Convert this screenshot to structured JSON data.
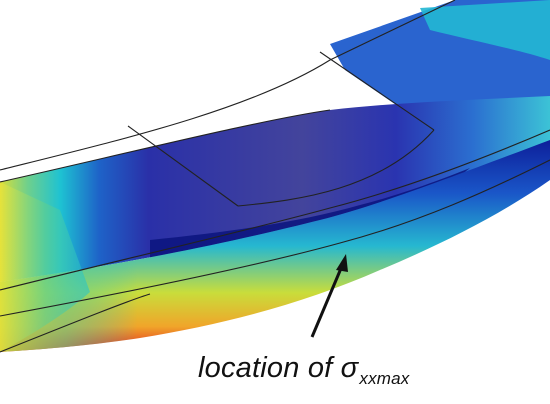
{
  "annotation": {
    "text": "location of",
    "symbol": "σ",
    "subscript": "xxmax"
  },
  "colors": {
    "stress_low": "#2b2fb0",
    "stress_mid": "#18c6d0",
    "stress_high": "#e6332a",
    "outline": "#222222"
  }
}
